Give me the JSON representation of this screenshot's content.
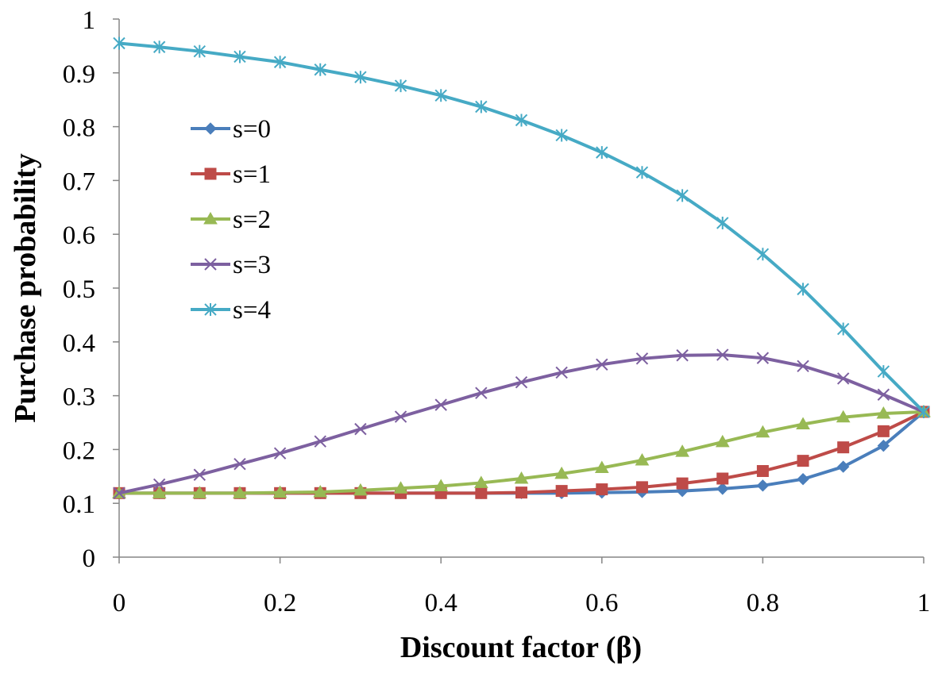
{
  "chart_data": {
    "type": "line",
    "title": "",
    "xlabel": "Discount factor (β)",
    "ylabel": "Purchase probability",
    "xlim": [
      0,
      1
    ],
    "ylim": [
      0,
      1
    ],
    "x_ticks": [
      "0",
      "0.2",
      "0.4",
      "0.6",
      "0.8",
      "1"
    ],
    "y_ticks": [
      "0",
      "0.1",
      "0.2",
      "0.3",
      "0.4",
      "0.5",
      "0.6",
      "0.7",
      "0.8",
      "0.9",
      "1"
    ],
    "grid": false,
    "legend_position": "left, inside plot",
    "x": [
      0,
      0.05,
      0.1,
      0.15,
      0.2,
      0.25,
      0.3,
      0.35,
      0.4,
      0.45,
      0.5,
      0.55,
      0.6,
      0.65,
      0.7,
      0.75,
      0.8,
      0.85,
      0.9,
      0.95,
      1
    ],
    "series": [
      {
        "name": "s=0",
        "color": "#4a7ebb",
        "marker": "diamond",
        "values": [
          0.119,
          0.119,
          0.119,
          0.119,
          0.119,
          0.119,
          0.119,
          0.119,
          0.119,
          0.119,
          0.119,
          0.119,
          0.12,
          0.121,
          0.123,
          0.127,
          0.133,
          0.145,
          0.168,
          0.207,
          0.27
        ]
      },
      {
        "name": "s=1",
        "color": "#be4b48",
        "marker": "square",
        "values": [
          0.119,
          0.119,
          0.119,
          0.119,
          0.119,
          0.119,
          0.119,
          0.119,
          0.119,
          0.119,
          0.12,
          0.123,
          0.126,
          0.13,
          0.137,
          0.146,
          0.16,
          0.179,
          0.204,
          0.234,
          0.27
        ]
      },
      {
        "name": "s=2",
        "color": "#98b954",
        "marker": "triangle",
        "values": [
          0.119,
          0.119,
          0.119,
          0.119,
          0.12,
          0.121,
          0.124,
          0.128,
          0.132,
          0.138,
          0.146,
          0.155,
          0.166,
          0.18,
          0.196,
          0.214,
          0.232,
          0.247,
          0.26,
          0.267,
          0.27
        ]
      },
      {
        "name": "s=3",
        "color": "#7d60a0",
        "marker": "x",
        "values": [
          0.119,
          0.135,
          0.153,
          0.173,
          0.193,
          0.215,
          0.238,
          0.261,
          0.283,
          0.305,
          0.325,
          0.343,
          0.358,
          0.369,
          0.375,
          0.376,
          0.37,
          0.355,
          0.332,
          0.302,
          0.27
        ]
      },
      {
        "name": "s=4",
        "color": "#46aac5",
        "marker": "star",
        "values": [
          0.955,
          0.948,
          0.94,
          0.93,
          0.92,
          0.906,
          0.892,
          0.876,
          0.858,
          0.837,
          0.812,
          0.784,
          0.752,
          0.715,
          0.672,
          0.621,
          0.563,
          0.498,
          0.424,
          0.345,
          0.27
        ]
      }
    ]
  }
}
